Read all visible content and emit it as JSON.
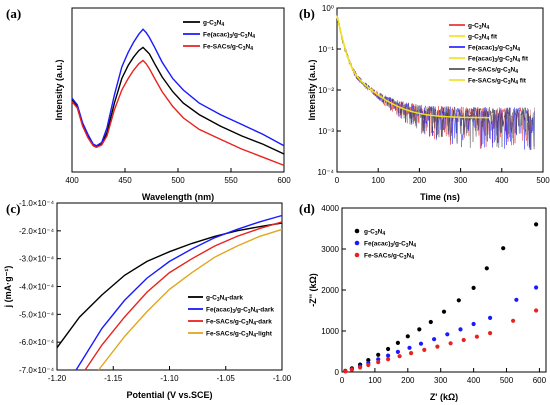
{
  "chart_data": [
    {
      "panel": "(a)",
      "type": "line",
      "xlabel": "Wavelength (nm)",
      "ylabel": "Intensity (a.u.)",
      "xlim": [
        400,
        600
      ],
      "xticks": [
        "400",
        "450",
        "500",
        "550",
        "600"
      ],
      "legend_position": "top-right",
      "series": [
        {
          "name": "g-C3N4",
          "color": "#000000",
          "x": [
            400,
            405,
            410,
            415,
            420,
            423,
            428,
            433,
            440,
            447,
            453,
            458,
            463,
            467,
            470,
            473,
            478,
            485,
            495,
            505,
            520,
            540,
            560,
            580,
            600
          ],
          "y": [
            0.44,
            0.4,
            0.29,
            0.22,
            0.165,
            0.155,
            0.17,
            0.24,
            0.42,
            0.57,
            0.65,
            0.7,
            0.74,
            0.76,
            0.74,
            0.72,
            0.66,
            0.58,
            0.49,
            0.42,
            0.35,
            0.28,
            0.22,
            0.17,
            0.11
          ]
        },
        {
          "name": "Fe(acac)3/g-C3N4",
          "color": "#1a1aff",
          "x": [
            400,
            405,
            410,
            415,
            420,
            423,
            428,
            433,
            440,
            447,
            453,
            458,
            463,
            467,
            470,
            473,
            478,
            485,
            495,
            505,
            520,
            540,
            560,
            580,
            600
          ],
          "y": [
            0.45,
            0.41,
            0.3,
            0.23,
            0.17,
            0.16,
            0.18,
            0.27,
            0.47,
            0.64,
            0.73,
            0.79,
            0.84,
            0.87,
            0.85,
            0.82,
            0.76,
            0.67,
            0.57,
            0.5,
            0.42,
            0.35,
            0.29,
            0.23,
            0.16
          ]
        },
        {
          "name": "Fe-SACs/g-C3N4",
          "color": "#e8231f",
          "x": [
            400,
            405,
            410,
            415,
            420,
            423,
            428,
            433,
            440,
            447,
            453,
            458,
            463,
            467,
            470,
            473,
            478,
            485,
            495,
            505,
            520,
            540,
            560,
            580,
            600
          ],
          "y": [
            0.43,
            0.39,
            0.28,
            0.21,
            0.16,
            0.15,
            0.165,
            0.22,
            0.38,
            0.5,
            0.57,
            0.62,
            0.66,
            0.68,
            0.66,
            0.63,
            0.57,
            0.49,
            0.4,
            0.33,
            0.26,
            0.2,
            0.14,
            0.09,
            0.04
          ]
        }
      ]
    },
    {
      "panel": "(b)",
      "type": "line",
      "xlabel": "Time (ns)",
      "ylabel": "Intensity (a.u.)",
      "xlim": [
        0,
        500
      ],
      "ylim": [
        0.0001,
        1
      ],
      "yscale": "log",
      "xticks": [
        "0",
        "100",
        "200",
        "300",
        "400",
        "500"
      ],
      "yticks": [
        "10⁰",
        "10⁻¹",
        "10⁻²",
        "10⁻³",
        "10⁻⁴"
      ],
      "legend_position": "top-right",
      "series": [
        {
          "name": "g-C3N4",
          "color": "#e8231f",
          "style": "noisy",
          "x": [
            0,
            470
          ]
        },
        {
          "name": "g-C3N4 fit",
          "color": "#f2e01a",
          "style": "fit",
          "x": [
            0,
            370
          ]
        },
        {
          "name": "Fe(acac)3/g-C3N4",
          "color": "#1a1aff",
          "style": "noisy",
          "x": [
            0,
            480
          ]
        },
        {
          "name": "Fe(acac)3/g-C3N4 fit",
          "color": "#f2e01a",
          "style": "fit",
          "x": [
            0,
            370
          ]
        },
        {
          "name": "Fe-SACs/g-C3N4",
          "color": "#444444",
          "style": "noisy",
          "x": [
            0,
            480
          ]
        },
        {
          "name": "Fe-SACs/g-C3N4 fit",
          "color": "#f2e01a",
          "style": "fit",
          "x": [
            0,
            370
          ]
        }
      ]
    },
    {
      "panel": "(c)",
      "type": "line",
      "xlabel": "Potential (V vs.SCE)",
      "ylabel": "j (mA·g⁻¹)",
      "xlim": [
        -1.2,
        -1.0
      ],
      "ylim": [
        -0.0007,
        -0.0001
      ],
      "xticks": [
        "-1.20",
        "-1.15",
        "-1.10",
        "-1.05",
        "-1.00"
      ],
      "yticks": [
        "-1.0×10⁻⁴",
        "-2.0×10⁻⁴",
        "-3.0×10⁻⁴",
        "-4.0×10⁻⁴",
        "-5.0×10⁻⁴",
        "-6.0×10⁻⁴",
        "-7.0×10⁻⁴"
      ],
      "legend_position": "bottom-right",
      "series": [
        {
          "name": "g-C3N4-dark",
          "color": "#000000",
          "x": [
            -1.2,
            -1.18,
            -1.16,
            -1.14,
            -1.12,
            -1.1,
            -1.08,
            -1.06,
            -1.04,
            -1.02,
            -1.0
          ],
          "y": [
            -0.00062,
            -0.00051,
            -0.00043,
            -0.00036,
            -0.00031,
            -0.000275,
            -0.000245,
            -0.00022,
            -0.0002,
            -0.000185,
            -0.000172
          ]
        },
        {
          "name": "Fe(acac)3/g-C3N4-dark",
          "color": "#1a1aff",
          "x": [
            -1.183,
            -1.16,
            -1.14,
            -1.12,
            -1.1,
            -1.08,
            -1.06,
            -1.04,
            -1.02,
            -1.0
          ],
          "y": [
            -0.0007,
            -0.00055,
            -0.00045,
            -0.00037,
            -0.00031,
            -0.000265,
            -0.000225,
            -0.000195,
            -0.000168,
            -0.000145
          ]
        },
        {
          "name": "Fe-SACs/g-C3N4-dark",
          "color": "#e8231f",
          "x": [
            -1.175,
            -1.16,
            -1.14,
            -1.12,
            -1.1,
            -1.08,
            -1.06,
            -1.04,
            -1.02,
            -1.0
          ],
          "y": [
            -0.0007,
            -0.00061,
            -0.00051,
            -0.00042,
            -0.00035,
            -0.0003,
            -0.000255,
            -0.00022,
            -0.000192,
            -0.000168
          ]
        },
        {
          "name": "Fe-SACs/g-C3N4-light",
          "color": "#e3a51e",
          "x": [
            -1.163,
            -1.14,
            -1.12,
            -1.1,
            -1.08,
            -1.06,
            -1.04,
            -1.02,
            -1.0
          ],
          "y": [
            -0.0007,
            -0.00058,
            -0.00049,
            -0.00041,
            -0.00035,
            -0.000295,
            -0.000255,
            -0.00022,
            -0.000195
          ]
        }
      ]
    },
    {
      "panel": "(d)",
      "type": "scatter",
      "xlabel": "Z' (kΩ)",
      "ylabel": "-Z'' (kΩ)",
      "xlim": [
        0,
        620
      ],
      "ylim": [
        0,
        4000
      ],
      "xticks": [
        "0",
        "100",
        "200",
        "300",
        "400",
        "500",
        "600"
      ],
      "yticks": [
        "0",
        "1000",
        "2000",
        "3000",
        "4000"
      ],
      "legend_position": "top-left",
      "series": [
        {
          "name": "g-C3N4",
          "color": "#000000",
          "x": [
            10,
            30,
            55,
            80,
            110,
            140,
            170,
            200,
            235,
            270,
            310,
            355,
            400,
            440,
            490,
            590
          ],
          "y": [
            30,
            90,
            180,
            290,
            420,
            560,
            710,
            870,
            1040,
            1220,
            1470,
            1750,
            2050,
            2530,
            3020,
            3600
          ]
        },
        {
          "name": "Fe(acac)3/g-C3N4",
          "color": "#1a1aff",
          "x": [
            10,
            30,
            55,
            80,
            110,
            140,
            170,
            205,
            240,
            280,
            320,
            360,
            400,
            450,
            530,
            590
          ],
          "y": [
            20,
            70,
            140,
            220,
            310,
            400,
            490,
            590,
            690,
            800,
            920,
            1040,
            1170,
            1320,
            1760,
            2060
          ]
        },
        {
          "name": "Fe-SACs/g-C3N4",
          "color": "#e8231f",
          "x": [
            10,
            30,
            55,
            80,
            110,
            140,
            175,
            210,
            250,
            290,
            330,
            370,
            410,
            450,
            520,
            590
          ],
          "y": [
            15,
            55,
            110,
            170,
            240,
            310,
            385,
            460,
            540,
            620,
            700,
            780,
            860,
            950,
            1250,
            1500
          ]
        }
      ]
    }
  ]
}
